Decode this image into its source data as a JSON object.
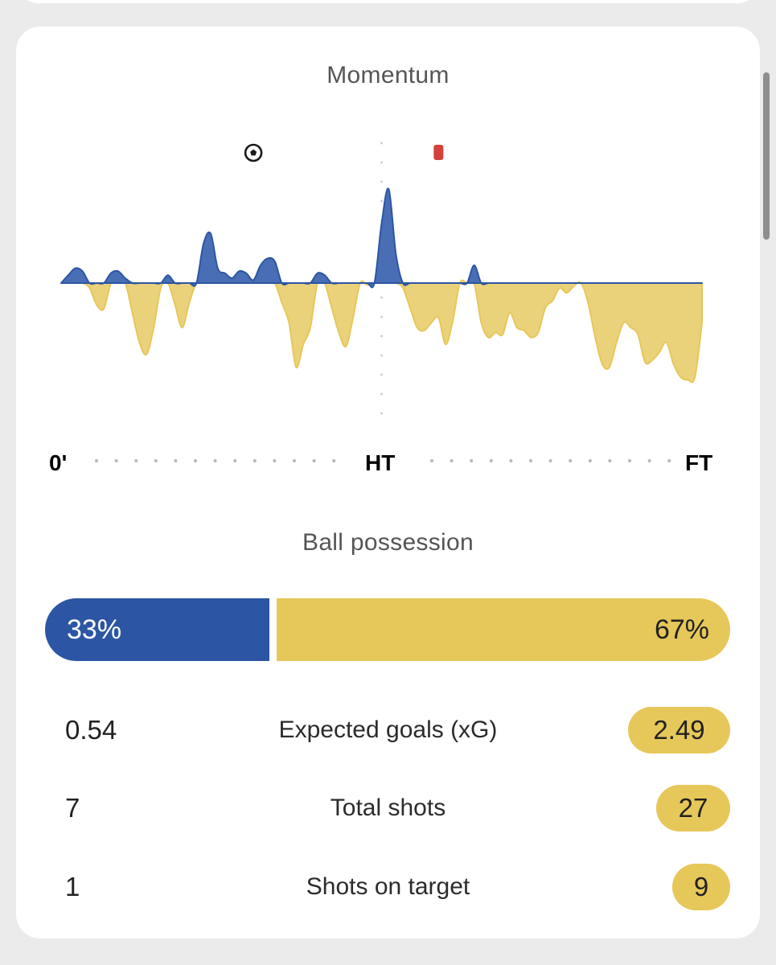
{
  "momentum": {
    "title": "Momentum",
    "timeline_labels": {
      "start": "0'",
      "half": "HT",
      "end": "FT"
    },
    "events": [
      {
        "type": "goal",
        "icon": "soccer-ball-icon",
        "minute": 27,
        "team": "home"
      },
      {
        "type": "red-card",
        "icon": "red-card-icon",
        "minute": 53,
        "team": "away"
      }
    ],
    "colors": {
      "home": "#2c56a3",
      "away": "#e6c75a",
      "home_fill": "#4a6eb5",
      "away_fill": "#ead27a"
    }
  },
  "chart_data": {
    "type": "area",
    "title": "Momentum",
    "xlabel": "",
    "ylabel": "",
    "x_ticks": [
      "0'",
      "HT",
      "FT"
    ],
    "xlim": [
      0,
      90
    ],
    "ylim": [
      -100,
      100
    ],
    "note_sign": "positive = home pressure, negative = away pressure",
    "x": [
      0,
      1,
      2,
      3,
      4,
      5,
      6,
      7,
      8,
      9,
      10,
      11,
      12,
      13,
      14,
      15,
      16,
      17,
      18,
      19,
      20,
      21,
      22,
      23,
      24,
      25,
      26,
      27,
      28,
      29,
      30,
      31,
      32,
      33,
      34,
      35,
      36,
      37,
      38,
      39,
      40,
      41,
      42,
      43,
      44,
      45,
      46,
      47,
      48,
      49,
      50,
      51,
      52,
      53,
      54,
      55,
      56,
      57,
      58,
      59,
      60,
      61,
      62,
      63,
      64,
      65,
      66,
      67,
      68,
      69,
      70,
      71,
      72,
      73,
      74,
      75,
      76,
      77,
      78,
      79,
      80,
      81,
      82,
      83,
      84,
      85,
      86,
      87,
      88,
      89,
      90
    ],
    "values": [
      0,
      8,
      15,
      12,
      -5,
      -22,
      -26,
      10,
      12,
      5,
      -30,
      -60,
      -72,
      -45,
      -5,
      8,
      -22,
      -45,
      -20,
      0,
      40,
      50,
      15,
      10,
      5,
      12,
      10,
      3,
      18,
      25,
      22,
      -20,
      -40,
      -85,
      -62,
      -45,
      10,
      8,
      -25,
      -50,
      -64,
      -35,
      0,
      -2,
      0,
      60,
      95,
      30,
      -5,
      -25,
      -45,
      -48,
      -40,
      -35,
      -62,
      -38,
      0,
      0,
      18,
      -40,
      -55,
      -50,
      -52,
      -30,
      -45,
      -48,
      -55,
      -50,
      -25,
      -18,
      -5,
      -10,
      -3,
      0,
      -20,
      -55,
      -82,
      -85,
      -60,
      -40,
      -45,
      -52,
      -80,
      -78,
      -70,
      -60,
      -82,
      -95,
      -98,
      -95,
      -40
    ]
  },
  "possession": {
    "title": "Ball possession",
    "home_label": "33%",
    "away_label": "67%",
    "home_value": 33,
    "away_value": 67
  },
  "stats": [
    {
      "label": "Expected goals (xG)",
      "home": "0.54",
      "away": "2.49"
    },
    {
      "label": "Total shots",
      "home": "7",
      "away": "27"
    },
    {
      "label": "Shots on target",
      "home": "1",
      "away": "9"
    }
  ]
}
